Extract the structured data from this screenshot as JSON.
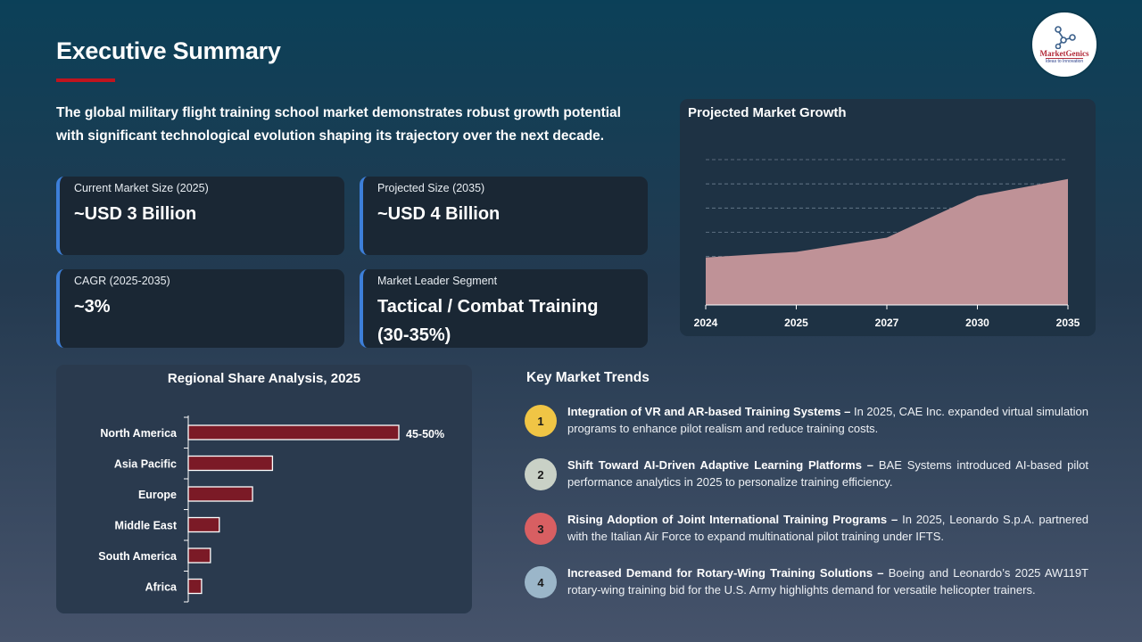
{
  "title": "Executive Summary",
  "logo": {
    "name": "MarketGenics",
    "tagline": "Ideas to Innovation"
  },
  "intro": "The global military flight training school market demonstrates robust growth potential with significant technological evolution shaping its trajectory over the next decade.",
  "kpis": [
    {
      "label": "Current Market Size (2025)",
      "value": "~USD 3 Billion"
    },
    {
      "label": "Projected Size (2035)",
      "value": "~USD 4 Billion"
    },
    {
      "label": "CAGR (2025-2035)",
      "value": "~3%"
    },
    {
      "label": "Market Leader Segment",
      "value": "Tactical / Combat Training (30-35%)"
    }
  ],
  "colors": {
    "accent": "#c0141e",
    "kpi_border": "#3d7fd9",
    "bar": "#7b1a26",
    "area": "#bf9297"
  },
  "chart_data": [
    {
      "type": "area",
      "title": "Projected Market Growth",
      "categories": [
        "2024",
        "2025",
        "2027",
        "2030",
        "2035"
      ],
      "values": [
        1.96,
        2.19,
        2.78,
        4.5,
        5.2
      ],
      "ylim": [
        0,
        6
      ],
      "grid": true,
      "y_axis_labels": false
    },
    {
      "type": "bar",
      "orientation": "horizontal",
      "title": "Regional Share Analysis, 2025",
      "categories": [
        "North America",
        "Asia Pacific",
        "Europe",
        "Middle East",
        "South America",
        "Africa"
      ],
      "values": [
        47.5,
        19,
        14.5,
        7,
        5,
        3
      ],
      "unit": "%",
      "data_labels": [
        "45-50%",
        "",
        "",
        "",
        "",
        ""
      ],
      "xlim": [
        0,
        50
      ]
    }
  ],
  "trends": {
    "title": "Key Market Trends",
    "items": [
      {
        "num": "1",
        "color": "#f0c545",
        "head": "Integration of VR and AR-based Training Systems –",
        "body": " In 2025, CAE Inc. expanded virtual simulation programs to enhance pilot realism and reduce training costs."
      },
      {
        "num": "2",
        "color": "#c9d1c6",
        "head": "Shift Toward AI-Driven Adaptive Learning Platforms –",
        "body": " BAE Systems introduced AI-based pilot performance analytics in 2025 to personalize training efficiency."
      },
      {
        "num": "3",
        "color": "#d85f62",
        "head": "Rising Adoption of Joint International Training Programs –",
        "body": " In 2025, Leonardo S.p.A. partnered with the Italian Air Force to expand multinational pilot training under IFTS."
      },
      {
        "num": "4",
        "color": "#9bb6c9",
        "head": "Increased Demand for Rotary-Wing Training Solutions –",
        "body": " Boeing and Leonardo’s 2025 AW119T rotary-wing training bid for the U.S. Army highlights demand for versatile helicopter trainers."
      }
    ]
  }
}
